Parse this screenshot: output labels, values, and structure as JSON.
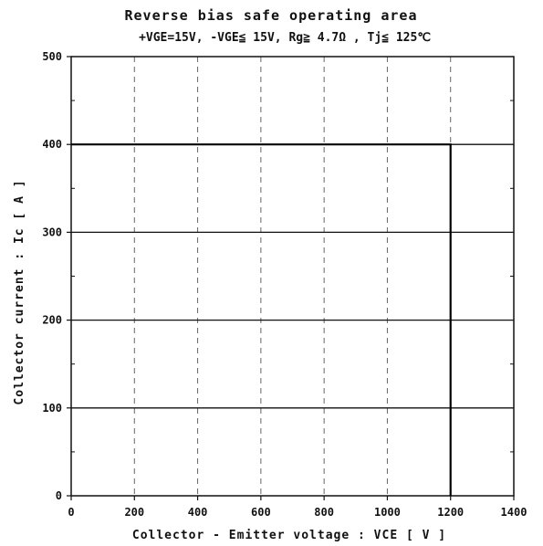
{
  "chart_data": {
    "type": "line",
    "title": "Reverse bias safe operating area",
    "subtitle": "+VGE=15V, -VGE≦ 15V, Rg≧ 4.7Ω , Tj≦ 125℃",
    "xlabel": "Collector - Emitter voltage  :  VCE  [ V ]",
    "ylabel": "Collector current  : Ic  [ A ]",
    "xlim": [
      0,
      1400
    ],
    "ylim": [
      0,
      500
    ],
    "x_ticks": [
      0,
      200,
      400,
      600,
      800,
      1000,
      1200,
      1400
    ],
    "y_ticks": [
      0,
      100,
      200,
      300,
      400,
      500
    ],
    "grid": true,
    "series": [
      {
        "x": [
          0,
          1200,
          1200
        ],
        "y": [
          400,
          400,
          0
        ]
      }
    ]
  }
}
